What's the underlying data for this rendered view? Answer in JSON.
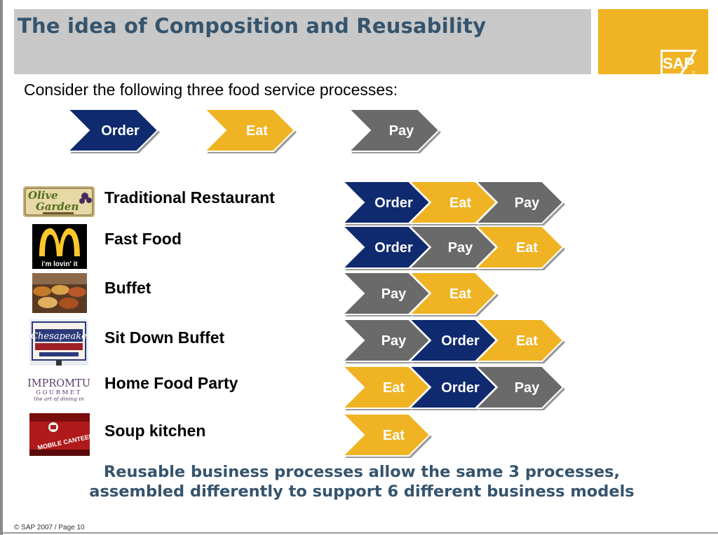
{
  "slide": {
    "title": "The idea of Composition and Reusability",
    "intro": "Consider the following three food service processes:",
    "logo_text": "SAP",
    "footer": "© SAP 2007 / Page 10",
    "tagline_line1": "Reusable business processes allow the same 3 processes,",
    "tagline_line2": "assembled differently to support 6 different business models"
  },
  "colors": {
    "Order": "#0f2a6e",
    "Eat": "#f0b323",
    "Pay": "#6a6a6a",
    "title_text": "#35546d",
    "title_bar": "#c8c8c8",
    "brand_yellow": "#f0b323"
  },
  "processes": [
    "Order",
    "Eat",
    "Pay"
  ],
  "business_models": [
    {
      "name": "Traditional Restaurant",
      "logo": "olive-garden-logo",
      "sequence": [
        "Order",
        "Eat",
        "Pay"
      ]
    },
    {
      "name": "Fast Food",
      "logo": "mcdonalds-logo",
      "logo_text": "i'm lovin' it",
      "sequence": [
        "Order",
        "Pay",
        "Eat"
      ]
    },
    {
      "name": "Buffet",
      "logo": "buffet-photo",
      "sequence": [
        "Pay",
        "Eat"
      ]
    },
    {
      "name": "Sit Down Buffet",
      "logo": "chesapeake-seafood-house-logo",
      "sequence": [
        "Pay",
        "Order",
        "Eat"
      ]
    },
    {
      "name": "Home Food Party",
      "logo": "impromtu-gourmet-logo",
      "logo_text": "IMPROMTU",
      "logo_sub": "GOURMET",
      "logo_tag": "the art of dining in",
      "sequence": [
        "Eat",
        "Order",
        "Pay"
      ]
    },
    {
      "name": "Soup kitchen",
      "logo": "mobile-canteen-photo",
      "logo_text": "MOBILE CANTEEN",
      "sequence": [
        "Eat"
      ]
    }
  ]
}
